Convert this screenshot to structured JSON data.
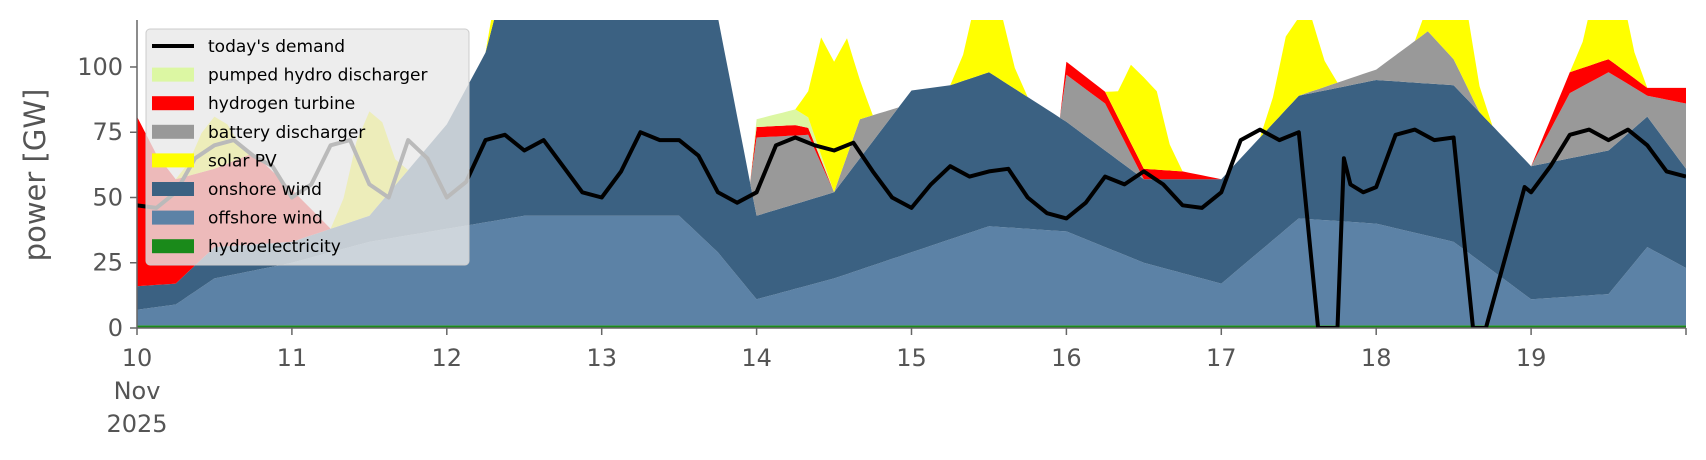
{
  "chart_data": {
    "type": "area",
    "ylabel": "power [GW]",
    "ylim": [
      0,
      118
    ],
    "x_range": [
      "2025-11-10T00:00",
      "2025-11-20T00:00"
    ],
    "x_tick_labels": [
      {
        "value": "2025-11-10",
        "lines": [
          "10",
          "Nov",
          "2025"
        ]
      },
      {
        "value": "2025-11-11",
        "lines": [
          "11"
        ]
      },
      {
        "value": "2025-11-12",
        "lines": [
          "12"
        ]
      },
      {
        "value": "2025-11-13",
        "lines": [
          "13"
        ]
      },
      {
        "value": "2025-11-14",
        "lines": [
          "14"
        ]
      },
      {
        "value": "2025-11-15",
        "lines": [
          "15"
        ]
      },
      {
        "value": "2025-11-16",
        "lines": [
          "16"
        ]
      },
      {
        "value": "2025-11-17",
        "lines": [
          "17"
        ]
      },
      {
        "value": "2025-11-18",
        "lines": [
          "18"
        ]
      },
      {
        "value": "2025-11-19",
        "lines": [
          "19"
        ]
      }
    ],
    "y_ticks": [
      0,
      25,
      50,
      75,
      100
    ],
    "grid": false,
    "legend_position": "top-left",
    "legend": [
      "today's demand",
      "pumped hydro discharger",
      "hydrogen turbine",
      "battery discharger",
      "solar PV",
      "onshore wind",
      "offshore wind",
      "hydroelectricity"
    ],
    "stack_order": [
      "hydroelectricity",
      "offshore wind",
      "onshore wind",
      "battery discharger",
      "hydrogen turbine",
      "pumped hydro discharger",
      "solar PV"
    ],
    "colors": {
      "today's demand": "#000000",
      "pumped hydro discharger": "#dcf7a3",
      "hydrogen turbine": "#ff0000",
      "battery discharger": "#999999",
      "solar PV": "#ffff00",
      "onshore wind": "#3b6182",
      "offshore wind": "#5c82a6",
      "hydroelectricity": "#1a8a1a"
    },
    "series": [
      {
        "name": "hydroelectricity",
        "kind": "area",
        "x": [
          "2025-11-10T00:00",
          "2025-11-20T00:00"
        ],
        "values": [
          1,
          1
        ]
      },
      {
        "name": "offshore wind",
        "kind": "area",
        "x": [
          "2025-11-10T00:00",
          "2025-11-10T06:00",
          "2025-11-10T12:00",
          "2025-11-11T00:00",
          "2025-11-11T12:00",
          "2025-11-12T00:00",
          "2025-11-12T12:00",
          "2025-11-13T00:00",
          "2025-11-13T12:00",
          "2025-11-13T18:00",
          "2025-11-14T00:00",
          "2025-11-14T12:00",
          "2025-11-15T00:00",
          "2025-11-15T12:00",
          "2025-11-16T00:00",
          "2025-11-16T12:00",
          "2025-11-17T00:00",
          "2025-11-17T12:00",
          "2025-11-18T00:00",
          "2025-11-18T12:00",
          "2025-11-19T00:00",
          "2025-11-19T12:00",
          "2025-11-19T18:00",
          "2025-11-20T00:00"
        ],
        "values": [
          6,
          8,
          18,
          24,
          32,
          37,
          42,
          42,
          42,
          28,
          10,
          18,
          28,
          38,
          36,
          24,
          16,
          41,
          39,
          32,
          10,
          12,
          30,
          22
        ]
      },
      {
        "name": "onshore wind",
        "kind": "area",
        "x": [
          "2025-11-10T00:00",
          "2025-11-10T06:00",
          "2025-11-10T12:00",
          "2025-11-11T00:00",
          "2025-11-11T12:00",
          "2025-11-12T00:00",
          "2025-11-12T06:00",
          "2025-11-12T12:00",
          "2025-11-13T00:00",
          "2025-11-13T12:00",
          "2025-11-13T18:00",
          "2025-11-14T00:00",
          "2025-11-14T12:00",
          "2025-11-15T00:00",
          "2025-11-15T06:00",
          "2025-11-15T12:00",
          "2025-11-16T00:00",
          "2025-11-16T12:00",
          "2025-11-17T00:00",
          "2025-11-17T12:00",
          "2025-11-18T00:00",
          "2025-11-18T12:00",
          "2025-11-19T00:00",
          "2025-11-19T12:00",
          "2025-11-19T18:00",
          "2025-11-20T00:00"
        ],
        "values": [
          9,
          8,
          12,
          8,
          10,
          40,
          65,
          120,
          120,
          120,
          90,
          32,
          33,
          62,
          59,
          59,
          42,
          32,
          40,
          47,
          55,
          60,
          51,
          55,
          50,
          38
        ]
      },
      {
        "name": "battery discharger",
        "kind": "area",
        "x": [
          "2025-11-10T00:00",
          "2025-11-13T23:00",
          "2025-11-14T00:00",
          "2025-11-14T08:00",
          "2025-11-14T12:00",
          "2025-11-14T16:00",
          "2025-11-14T22:00",
          "2025-11-15T00:00",
          "2025-11-15T12:00",
          "2025-11-15T23:00",
          "2025-11-16T00:00",
          "2025-11-16T06:00",
          "2025-11-16T12:00",
          "2025-11-17T00:00",
          "2025-11-17T12:00",
          "2025-11-18T00:00",
          "2025-11-18T08:00",
          "2025-11-18T16:00",
          "2025-11-19T00:00",
          "2025-11-19T06:00",
          "2025-11-19T12:00",
          "2025-11-19T18:00",
          "2025-11-20T00:00"
        ],
        "values": [
          0,
          0,
          30,
          25,
          0,
          15,
          0,
          0,
          0,
          0,
          18,
          18,
          0,
          0,
          0,
          4,
          20,
          0,
          0,
          25,
          30,
          8,
          25
        ]
      },
      {
        "name": "hydrogen turbine",
        "kind": "area",
        "x": [
          "2025-11-10T00:00",
          "2025-11-10T03:00",
          "2025-11-10T06:00",
          "2025-11-10T12:00",
          "2025-11-10T18:00",
          "2025-11-11T00:00",
          "2025-11-11T06:00",
          "2025-11-13T23:00",
          "2025-11-14T00:00",
          "2025-11-14T06:00",
          "2025-11-14T12:00",
          "2025-11-15T00:00",
          "2025-11-15T23:00",
          "2025-11-16T00:00",
          "2025-11-16T12:00",
          "2025-11-16T18:00",
          "2025-11-17T00:00",
          "2025-11-19T00:00",
          "2025-11-19T06:00",
          "2025-11-19T12:00",
          "2025-11-19T18:00",
          "2025-11-20T00:00"
        ],
        "values": [
          65,
          50,
          40,
          30,
          35,
          20,
          0,
          0,
          4,
          4,
          0,
          0,
          0,
          5,
          4,
          3,
          0,
          0,
          8,
          5,
          3,
          6
        ]
      },
      {
        "name": "pumped hydro discharger",
        "kind": "area",
        "x": [
          "2025-11-10T00:00",
          "2025-11-13T23:00",
          "2025-11-14T00:00",
          "2025-11-14T06:00",
          "2025-11-14T12:00",
          "2025-11-20T00:00"
        ],
        "values": [
          0,
          0,
          3,
          6,
          0,
          0
        ]
      },
      {
        "name": "solar PV",
        "kind": "area",
        "x": [
          "2025-11-10T00:00",
          "2025-11-10T06:00",
          "2025-11-10T08:00",
          "2025-11-10T10:00",
          "2025-11-10T12:00",
          "2025-11-10T14:00",
          "2025-11-10T16:00",
          "2025-11-10T18:00",
          "2025-11-11T06:00",
          "2025-11-11T08:00",
          "2025-11-11T10:00",
          "2025-11-11T12:00",
          "2025-11-11T14:00",
          "2025-11-11T16:00",
          "2025-11-11T18:00",
          "2025-11-12T06:00",
          "2025-11-12T08:00",
          "2025-11-12T10:00",
          "2025-11-12T12:00",
          "2025-11-12T14:00",
          "2025-11-12T16:00",
          "2025-11-12T18:00",
          "2025-11-13T06:00",
          "2025-11-13T08:00",
          "2025-11-13T10:00",
          "2025-11-13T12:00",
          "2025-11-13T14:00",
          "2025-11-13T16:00",
          "2025-11-13T18:00",
          "2025-11-14T06:00",
          "2025-11-14T08:00",
          "2025-11-14T10:00",
          "2025-11-14T12:00",
          "2025-11-14T14:00",
          "2025-11-14T16:00",
          "2025-11-14T18:00",
          "2025-11-15T06:00",
          "2025-11-15T08:00",
          "2025-11-15T10:00",
          "2025-11-15T12:00",
          "2025-11-15T14:00",
          "2025-11-15T16:00",
          "2025-11-15T18:00",
          "2025-11-16T06:00",
          "2025-11-16T08:00",
          "2025-11-16T10:00",
          "2025-11-16T12:00",
          "2025-11-16T14:00",
          "2025-11-16T16:00",
          "2025-11-16T18:00",
          "2025-11-17T06:00",
          "2025-11-17T08:00",
          "2025-11-17T10:00",
          "2025-11-17T12:00",
          "2025-11-17T14:00",
          "2025-11-17T16:00",
          "2025-11-17T18:00",
          "2025-11-18T06:00",
          "2025-11-18T08:00",
          "2025-11-18T10:00",
          "2025-11-18T12:00",
          "2025-11-18T14:00",
          "2025-11-18T16:00",
          "2025-11-18T18:00",
          "2025-11-19T06:00",
          "2025-11-19T08:00",
          "2025-11-19T10:00",
          "2025-11-19T12:00",
          "2025-11-19T14:00",
          "2025-11-19T16:00",
          "2025-11-19T18:00",
          "2025-11-20T00:00"
        ],
        "values": [
          0,
          0,
          5,
          15,
          20,
          15,
          5,
          0,
          0,
          10,
          30,
          40,
          30,
          10,
          0,
          0,
          10,
          25,
          30,
          25,
          10,
          0,
          0,
          5,
          15,
          20,
          15,
          5,
          0,
          0,
          10,
          45,
          50,
          45,
          15,
          0,
          0,
          10,
          30,
          35,
          25,
          8,
          0,
          0,
          10,
          30,
          35,
          30,
          10,
          0,
          0,
          10,
          28,
          30,
          28,
          10,
          0,
          0,
          10,
          30,
          35,
          30,
          10,
          0,
          0,
          10,
          30,
          35,
          30,
          10,
          0,
          0
        ]
      },
      {
        "name": "today's demand",
        "kind": "line",
        "x": [
          "2025-11-10T00:00",
          "2025-11-10T03:00",
          "2025-11-10T06:00",
          "2025-11-10T09:00",
          "2025-11-10T12:00",
          "2025-11-10T15:00",
          "2025-11-10T18:00",
          "2025-11-10T21:00",
          "2025-11-11T00:00",
          "2025-11-11T03:00",
          "2025-11-11T06:00",
          "2025-11-11T09:00",
          "2025-11-11T12:00",
          "2025-11-11T15:00",
          "2025-11-11T18:00",
          "2025-11-11T21:00",
          "2025-11-12T00:00",
          "2025-11-12T03:00",
          "2025-11-12T06:00",
          "2025-11-12T09:00",
          "2025-11-12T12:00",
          "2025-11-12T15:00",
          "2025-11-12T18:00",
          "2025-11-12T21:00",
          "2025-11-13T00:00",
          "2025-11-13T03:00",
          "2025-11-13T06:00",
          "2025-11-13T09:00",
          "2025-11-13T12:00",
          "2025-11-13T15:00",
          "2025-11-13T18:00",
          "2025-11-13T21:00",
          "2025-11-14T00:00",
          "2025-11-14T03:00",
          "2025-11-14T06:00",
          "2025-11-14T09:00",
          "2025-11-14T12:00",
          "2025-11-14T15:00",
          "2025-11-14T18:00",
          "2025-11-14T21:00",
          "2025-11-15T00:00",
          "2025-11-15T03:00",
          "2025-11-15T06:00",
          "2025-11-15T09:00",
          "2025-11-15T12:00",
          "2025-11-15T15:00",
          "2025-11-15T18:00",
          "2025-11-15T21:00",
          "2025-11-16T00:00",
          "2025-11-16T03:00",
          "2025-11-16T06:00",
          "2025-11-16T09:00",
          "2025-11-16T12:00",
          "2025-11-16T15:00",
          "2025-11-16T18:00",
          "2025-11-16T21:00",
          "2025-11-17T00:00",
          "2025-11-17T03:00",
          "2025-11-17T06:00",
          "2025-11-17T09:00",
          "2025-11-17T12:00",
          "2025-11-17T15:00",
          "2025-11-17T18:00",
          "2025-11-17T19:00",
          "2025-11-17T20:00",
          "2025-11-17T22:00",
          "2025-11-18T00:00",
          "2025-11-18T03:00",
          "2025-11-18T06:00",
          "2025-11-18T09:00",
          "2025-11-18T12:00",
          "2025-11-18T15:00",
          "2025-11-18T16:00",
          "2025-11-18T17:00",
          "2025-11-18T23:00",
          "2025-11-19T00:00",
          "2025-11-19T03:00",
          "2025-11-19T06:00",
          "2025-11-19T09:00",
          "2025-11-19T12:00",
          "2025-11-19T15:00",
          "2025-11-19T18:00",
          "2025-11-19T21:00",
          "2025-11-20T00:00"
        ],
        "values": [
          47,
          46,
          52,
          65,
          70,
          72,
          66,
          62,
          50,
          55,
          70,
          72,
          55,
          50,
          72,
          65,
          50,
          56,
          72,
          74,
          68,
          72,
          62,
          52,
          50,
          60,
          75,
          72,
          72,
          66,
          52,
          48,
          52,
          70,
          73,
          70,
          68,
          71,
          60,
          50,
          46,
          55,
          62,
          58,
          60,
          61,
          50,
          44,
          42,
          48,
          58,
          55,
          60,
          55,
          47,
          46,
          52,
          72,
          76,
          72,
          75,
          0,
          0,
          65,
          55,
          52,
          54,
          74,
          76,
          72,
          73,
          0,
          0,
          0,
          54,
          52,
          62,
          74,
          76,
          72,
          76,
          70,
          60,
          58
        ]
      }
    ]
  }
}
